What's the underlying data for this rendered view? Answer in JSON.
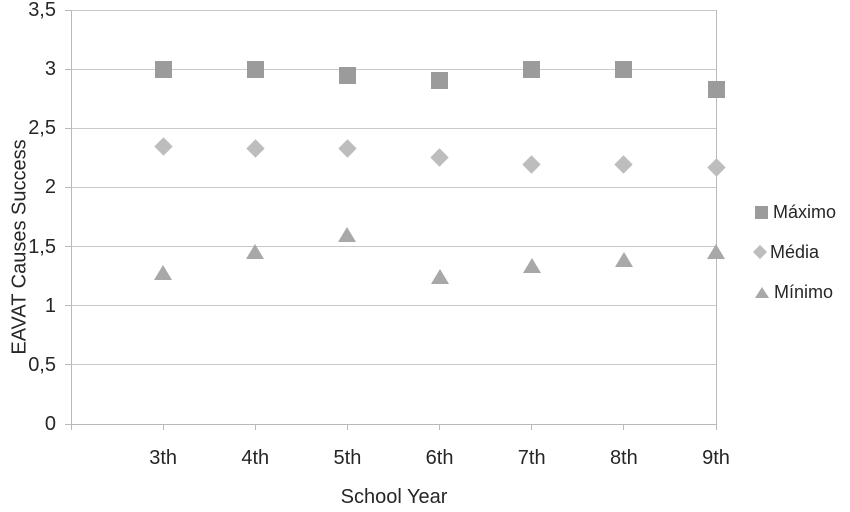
{
  "chart_data": {
    "type": "scatter",
    "title": "",
    "xlabel": "School Year",
    "ylabel": "EAVAT Causes Success",
    "categories": [
      "3th",
      "4th",
      "5th",
      "6th",
      "7th",
      "8th",
      "9th"
    ],
    "series": [
      {
        "name": "Máximo",
        "marker": "square",
        "color": "#9b9b9b",
        "values": [
          3.0,
          3.0,
          2.95,
          2.9,
          3.0,
          3.0,
          2.83
        ]
      },
      {
        "name": "Média",
        "marker": "diamond",
        "color": "#bdbdbd",
        "values": [
          2.35,
          2.33,
          2.33,
          2.25,
          2.19,
          2.19,
          2.17
        ]
      },
      {
        "name": "Mínimo",
        "marker": "triangle",
        "color": "#a8a8a8",
        "values": [
          1.28,
          1.46,
          1.6,
          1.25,
          1.34,
          1.39,
          1.46
        ]
      }
    ],
    "y_axis": {
      "min": 0,
      "max": 3.5,
      "tick_step": 0.5,
      "tick_labels": [
        "0",
        "0,5",
        "1",
        "1,5",
        "2",
        "2,5",
        "3",
        "3,5"
      ]
    },
    "grid": "horizontal",
    "legend_position": "right",
    "colors": {
      "gridline": "#c9c9c9",
      "axis_line": "#b9b9b9",
      "text": "#262626",
      "background": "#ffffff"
    }
  }
}
